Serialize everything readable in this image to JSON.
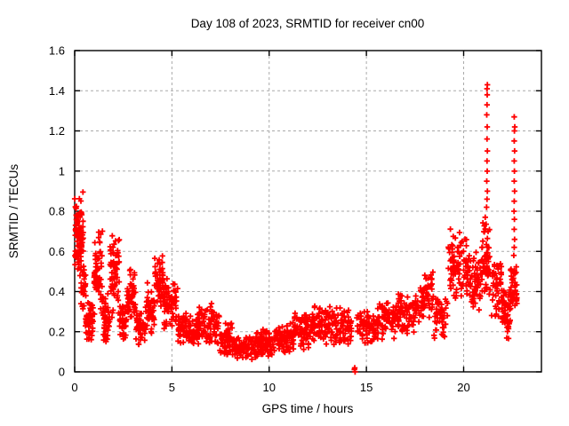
{
  "chart_data": {
    "type": "scatter",
    "title": "Day 108 of 2023, SRMTID for receiver cn00",
    "xlabel": "GPS time / hours",
    "ylabel": "SRMTID / TECUs",
    "xlim": [
      0,
      24
    ],
    "ylim": [
      0,
      1.6
    ],
    "xticks": [
      0,
      5,
      10,
      15,
      20
    ],
    "yticks": [
      0,
      0.2,
      0.4,
      0.6,
      0.8,
      1,
      1.2,
      1.4,
      1.6
    ],
    "grid": true,
    "legend": "none",
    "marker": "plus",
    "marker_color": "#ff0000",
    "grid_color": "#aaaaaa",
    "axis_color": "#000000",
    "background_color": "#ffffff",
    "series": [
      {
        "name": "SRMTID",
        "note": "dense scatter of + markers; segments are [x_start_h, x_end_h, y_min_TECU, y_max_TECU, n_points] envelopes read from the plot",
        "segments": [
          [
            0.0,
            0.45,
            0.45,
            0.92,
            85
          ],
          [
            0.3,
            0.6,
            0.28,
            0.55,
            25
          ],
          [
            0.55,
            0.95,
            0.14,
            0.36,
            55
          ],
          [
            1.0,
            1.45,
            0.25,
            0.75,
            60
          ],
          [
            1.45,
            1.8,
            0.13,
            0.4,
            48
          ],
          [
            1.8,
            2.3,
            0.25,
            0.72,
            65
          ],
          [
            2.3,
            2.65,
            0.14,
            0.36,
            38
          ],
          [
            2.65,
            3.15,
            0.2,
            0.53,
            55
          ],
          [
            3.15,
            3.65,
            0.12,
            0.33,
            45
          ],
          [
            3.65,
            4.1,
            0.18,
            0.45,
            42
          ],
          [
            4.1,
            4.55,
            0.3,
            0.585,
            55
          ],
          [
            4.55,
            5.0,
            0.2,
            0.48,
            40
          ],
          [
            5.0,
            5.3,
            0.22,
            0.47,
            25
          ],
          [
            5.3,
            5.75,
            0.13,
            0.32,
            40
          ],
          [
            5.75,
            6.3,
            0.11,
            0.28,
            48
          ],
          [
            6.3,
            6.9,
            0.12,
            0.34,
            48
          ],
          [
            6.9,
            7.45,
            0.1,
            0.36,
            45
          ],
          [
            7.45,
            8.1,
            0.07,
            0.26,
            55
          ],
          [
            8.1,
            9.3,
            0.05,
            0.19,
            95
          ],
          [
            9.3,
            10.3,
            0.07,
            0.22,
            85
          ],
          [
            10.3,
            11.3,
            0.09,
            0.26,
            85
          ],
          [
            11.3,
            12.2,
            0.1,
            0.31,
            75
          ],
          [
            12.2,
            13.2,
            0.12,
            0.34,
            80
          ],
          [
            13.2,
            14.25,
            0.13,
            0.33,
            78
          ],
          [
            14.5,
            15.5,
            0.13,
            0.32,
            70
          ],
          [
            15.5,
            16.5,
            0.15,
            0.37,
            72
          ],
          [
            16.5,
            17.5,
            0.17,
            0.42,
            72
          ],
          [
            17.5,
            18.0,
            0.2,
            0.46,
            40
          ],
          [
            18.0,
            18.45,
            0.25,
            0.56,
            34
          ],
          [
            18.45,
            19.2,
            0.14,
            0.4,
            48
          ],
          [
            19.2,
            20.3,
            0.3,
            0.75,
            95
          ],
          [
            20.3,
            20.9,
            0.28,
            0.6,
            50
          ],
          [
            20.9,
            21.35,
            0.35,
            0.78,
            60
          ],
          [
            21.35,
            21.95,
            0.25,
            0.58,
            48
          ],
          [
            21.95,
            22.4,
            0.14,
            0.45,
            55
          ],
          [
            22.4,
            22.75,
            0.28,
            0.55,
            45
          ]
        ],
        "explicit_points": [
          [
            21.18,
            0.82
          ],
          [
            21.2,
            0.86
          ],
          [
            21.22,
            0.9
          ],
          [
            21.19,
            0.95
          ],
          [
            21.21,
            1.0
          ],
          [
            21.2,
            1.05
          ],
          [
            21.22,
            1.1
          ],
          [
            21.2,
            1.16
          ],
          [
            21.21,
            1.22
          ],
          [
            21.19,
            1.28
          ],
          [
            21.2,
            1.33
          ],
          [
            21.21,
            1.38
          ],
          [
            21.2,
            1.41
          ],
          [
            21.22,
            1.43
          ],
          [
            22.58,
            0.58
          ],
          [
            22.6,
            0.62
          ],
          [
            22.62,
            0.66
          ],
          [
            22.6,
            0.71
          ],
          [
            22.61,
            0.76
          ],
          [
            22.59,
            0.8
          ],
          [
            22.6,
            0.85
          ],
          [
            22.62,
            0.9
          ],
          [
            22.6,
            0.95
          ],
          [
            22.61,
            1.0
          ],
          [
            22.6,
            1.05
          ],
          [
            22.62,
            1.1
          ],
          [
            22.6,
            1.15
          ],
          [
            22.61,
            1.2
          ],
          [
            22.63,
            1.22
          ],
          [
            22.6,
            1.27
          ],
          [
            14.38,
            0.012
          ],
          [
            14.42,
            0.0
          ],
          [
            14.4,
            0.02
          ]
        ]
      }
    ]
  }
}
